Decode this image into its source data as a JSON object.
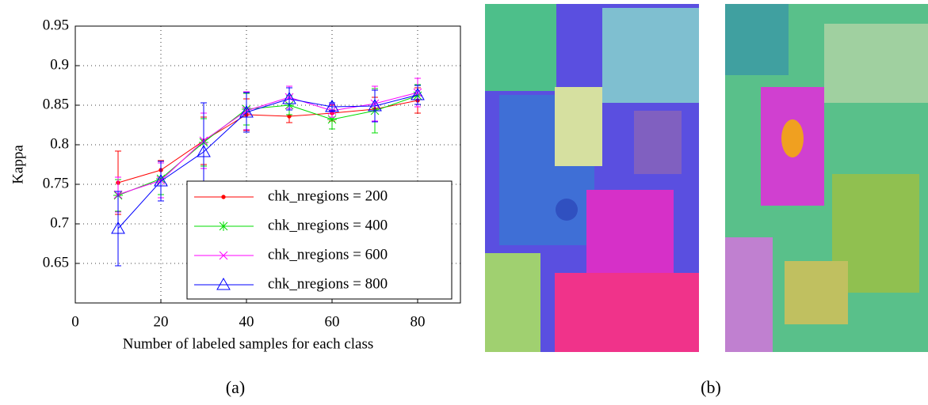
{
  "chart_data": {
    "type": "line",
    "ylabel": "Kappa",
    "xlabel": "Number of labeled samples for each class",
    "x": [
      10,
      20,
      30,
      40,
      50,
      60,
      70,
      80
    ],
    "xlim": [
      0,
      90
    ],
    "xticks": [
      0,
      20,
      40,
      60,
      80
    ],
    "ylim": [
      0.6,
      0.95
    ],
    "yticks": [
      0.65,
      0.7,
      0.75,
      0.8,
      0.85,
      0.9,
      0.95
    ],
    "grid": true,
    "legend": "lower right",
    "series": [
      {
        "name": "chk_nregions = 200",
        "color": "#ff0000",
        "marker": "dot",
        "values": [
          0.752,
          0.768,
          0.805,
          0.838,
          0.836,
          0.84,
          0.845,
          0.856
        ],
        "errors": [
          0.04,
          0.012,
          0.03,
          0.02,
          0.008,
          0.01,
          0.015,
          0.016
        ]
      },
      {
        "name": "chk_nregions = 400",
        "color": "#00dd00",
        "marker": "asterisk",
        "values": [
          0.736,
          0.757,
          0.803,
          0.845,
          0.85,
          0.832,
          0.843,
          0.862
        ],
        "errors": [
          0.02,
          0.02,
          0.03,
          0.02,
          0.012,
          0.012,
          0.028,
          0.014
        ]
      },
      {
        "name": "chk_nregions = 600",
        "color": "#ff00ff",
        "marker": "x",
        "values": [
          0.737,
          0.755,
          0.805,
          0.843,
          0.86,
          0.843,
          0.852,
          0.866
        ],
        "errors": [
          0.022,
          0.022,
          0.035,
          0.024,
          0.014,
          0.008,
          0.022,
          0.018
        ]
      },
      {
        "name": "chk_nregions = 800",
        "color": "#0000ff",
        "marker": "triangle",
        "values": [
          0.694,
          0.754,
          0.791,
          0.841,
          0.858,
          0.848,
          0.849,
          0.863
        ],
        "errors": [
          0.047,
          0.025,
          0.062,
          0.025,
          0.014,
          0.005,
          0.02,
          0.012
        ]
      }
    ]
  },
  "captions": [
    "(a)",
    "(b)"
  ]
}
